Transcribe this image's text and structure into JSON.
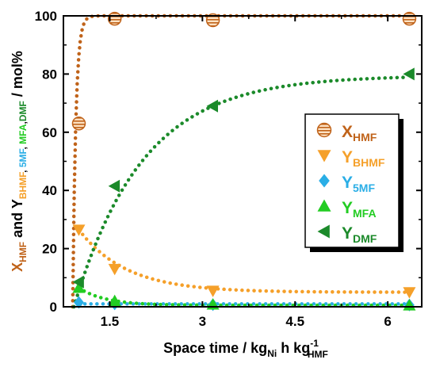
{
  "chart_data": {
    "type": "scatter",
    "title": "",
    "xlabel": {
      "main": "Space time /  kg",
      "sub1": "Ni",
      "mid": " h  kg",
      "sup": "-1",
      "sub2": "HMF"
    },
    "ylabel": {
      "segments": [
        {
          "text": "X",
          "role": "main",
          "color": "#c0631a"
        },
        {
          "text": "HMF",
          "role": "sub",
          "color": "#c0631a"
        },
        {
          "text": " and Y",
          "role": "main",
          "color": "#000000"
        },
        {
          "text": "BHMF",
          "role": "sub",
          "color": "#f5a02a"
        },
        {
          "text": ", ",
          "role": "sub",
          "color": "#000000"
        },
        {
          "text": "5MF",
          "role": "sub",
          "color": "#2aaee6"
        },
        {
          "text": ", ",
          "role": "sub",
          "color": "#000000"
        },
        {
          "text": "MFA",
          "role": "sub",
          "color": "#22cc22"
        },
        {
          "text": ",",
          "role": "sub",
          "color": "#000000"
        },
        {
          "text": "DMF",
          "role": "sub",
          "color": "#1b8a2a"
        },
        {
          "text": " / mol%",
          "role": "main",
          "color": "#000000"
        }
      ]
    },
    "xlim": [
      0.75,
      6.55
    ],
    "ylim": [
      0,
      100
    ],
    "xticks": [
      1.5,
      3,
      4.5,
      6
    ],
    "xtick_labels": [
      "1.5",
      "3",
      "4.5",
      "6"
    ],
    "yticks": [
      0,
      20,
      40,
      60,
      80,
      100
    ],
    "ytick_labels": [
      "0",
      "20",
      "40",
      "60",
      "80",
      "100"
    ],
    "grid": false,
    "legend": "right",
    "series": [
      {
        "key": "xhmf",
        "label_main": "X",
        "label_sub": "HMF",
        "color": "#c0631a",
        "marker": "circle-striped",
        "x": [
          1.0,
          1.58,
          3.17,
          6.35
        ],
        "y": [
          63,
          99,
          98.5,
          99
        ],
        "fit": {
          "model": "exp",
          "a": 100,
          "k": 20,
          "x0": 0.9,
          "xmax": 6.3
        }
      },
      {
        "key": "ybhmf",
        "label_main": "Y",
        "label_sub": "BHMF",
        "color": "#f5a02a",
        "marker": "triangle-down",
        "x": [
          1.0,
          1.58,
          3.17,
          6.35
        ],
        "y": [
          26.5,
          13,
          5.5,
          5
        ],
        "fit": {
          "model": "decay",
          "base": 5,
          "amp": 21.5,
          "k": 1.3,
          "x0": 1.0,
          "xmax": 6.3
        }
      },
      {
        "key": "y5mf",
        "label_main": "Y",
        "label_sub": "5MF",
        "color": "#2aaee6",
        "marker": "diamond",
        "x": [
          1.0,
          1.58,
          3.17,
          6.35
        ],
        "y": [
          1.5,
          1,
          0.7,
          0.6
        ],
        "fit": {
          "model": "flat",
          "v": 1.0,
          "x0": 1.0,
          "xmax": 6.3
        }
      },
      {
        "key": "ymfa",
        "label_main": "Y",
        "label_sub": "MFA",
        "color": "#22cc22",
        "marker": "triangle-up",
        "x": [
          1.0,
          1.58,
          3.17,
          6.35
        ],
        "y": [
          6.5,
          2,
          0.8,
          0.5
        ],
        "fit": {
          "model": "decay",
          "base": 0.5,
          "amp": 6,
          "k": 2.3,
          "x0": 1.0,
          "xmax": 6.3
        }
      },
      {
        "key": "ydmf",
        "label_main": "Y",
        "label_sub": "DMF",
        "color": "#1b8a2a",
        "marker": "triangle-left",
        "x": [
          1.0,
          1.58,
          3.17,
          6.35
        ],
        "y": [
          8.5,
          41.5,
          69,
          80
        ],
        "fit": {
          "model": "exp",
          "a": 79.5,
          "k": 0.9,
          "x0": 0.92,
          "xmax": 6.3
        }
      }
    ]
  }
}
